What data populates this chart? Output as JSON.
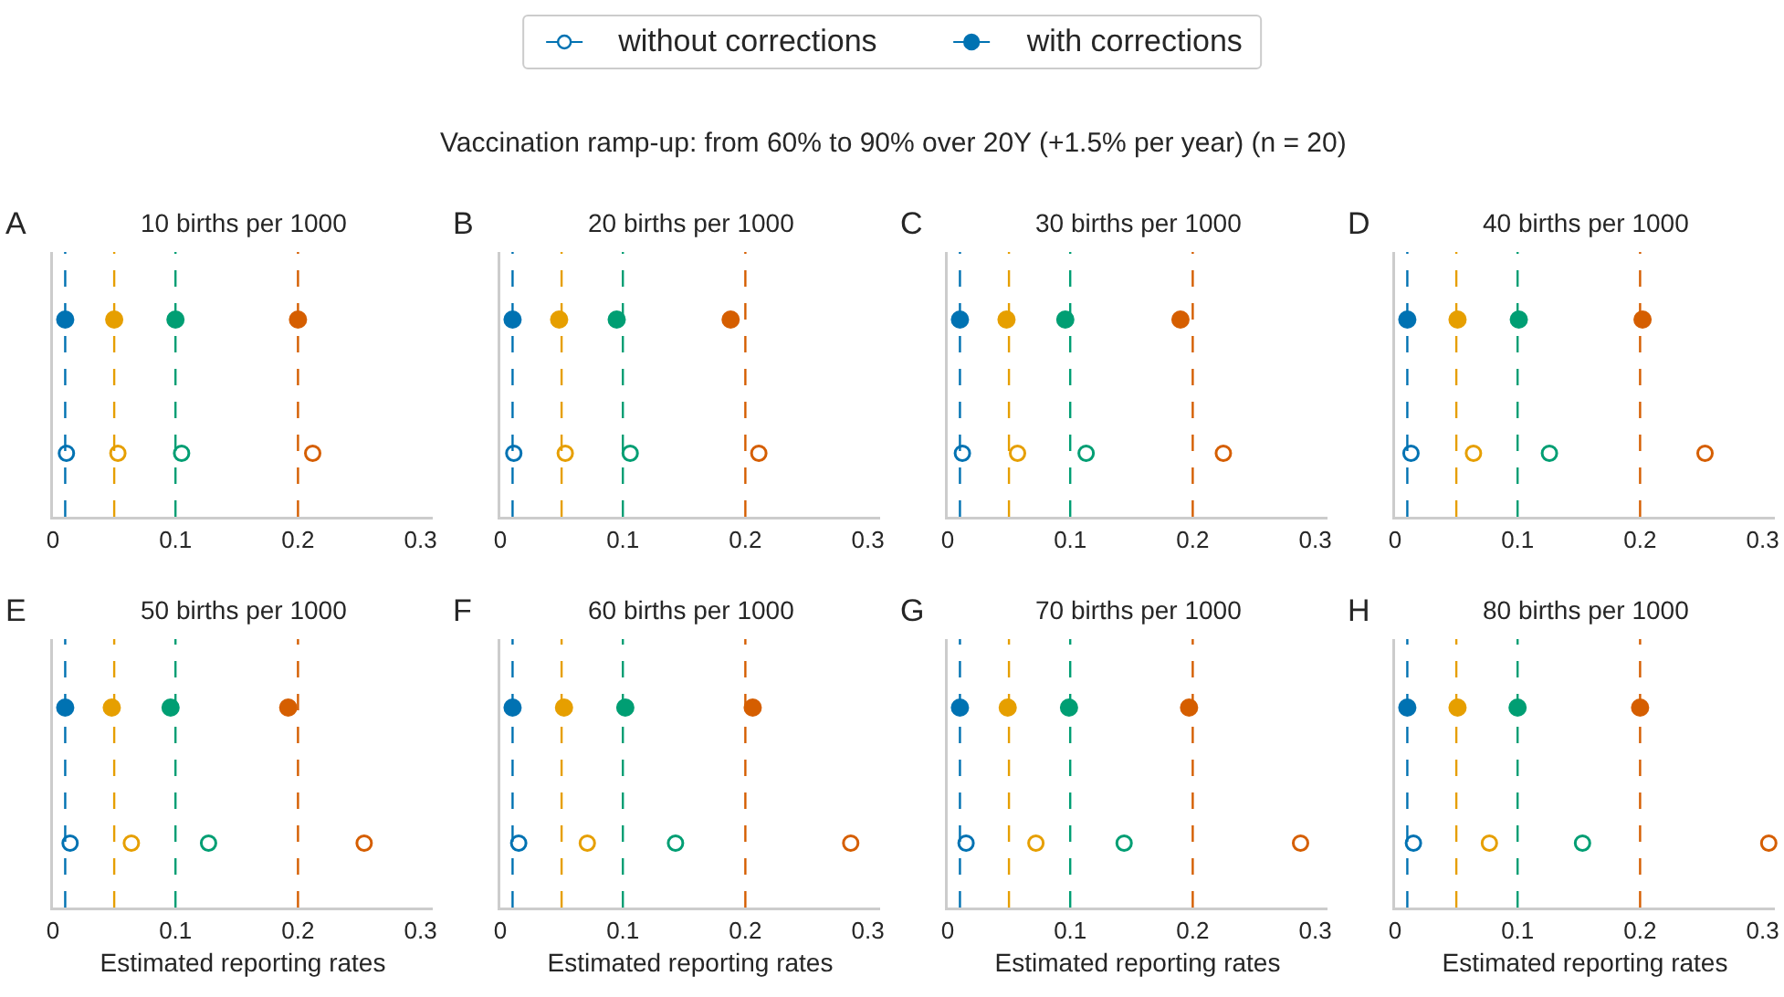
{
  "chart_data": [
    {
      "type": "scatter",
      "orientation": "horizontal",
      "title": "10 births per 1000",
      "annotations": [
        "A",
        "Vaccination ramp-up: from 60% to 90% over 20Y (+1.5% per year) (n = 20)"
      ],
      "categories": [
        null,
        null
      ],
      "xlim": [
        0,
        0.31
      ],
      "xticks": [
        0,
        0.1,
        0.2,
        0.3
      ],
      "tick_labels": "x",
      "legend": "top",
      "series": [
        {
          "name": "without corrections",
          "marker": "circle-open",
          "color": "#0072b2",
          "values": [
            null,
            0.011
          ]
        },
        {
          "name": "with corrections",
          "marker": "circle",
          "color": "#0072b2",
          "values": [
            0.01,
            null
          ]
        },
        {
          "marker": "circle-open",
          "color": "#e69f00",
          "values": [
            null,
            0.053
          ]
        },
        {
          "marker": "circle",
          "color": "#e69f00",
          "values": [
            0.05,
            null
          ]
        },
        {
          "marker": "circle-open",
          "color": "#009e73",
          "values": [
            null,
            0.105
          ]
        },
        {
          "marker": "circle",
          "color": "#009e73",
          "values": [
            0.1,
            null
          ]
        },
        {
          "marker": "circle-open",
          "color": "#d55e00",
          "values": [
            null,
            0.212
          ]
        },
        {
          "marker": "circle",
          "color": "#d55e00",
          "values": [
            0.2,
            null
          ]
        }
      ],
      "ref_lines": [
        {
          "axis": "x",
          "value": 0.01,
          "color": "#0072b2",
          "line_style": "dashed"
        },
        {
          "axis": "x",
          "value": 0.05,
          "color": "#e69f00",
          "line_style": "dashed"
        },
        {
          "axis": "x",
          "value": 0.1,
          "color": "#009e73",
          "line_style": "dashed"
        },
        {
          "axis": "x",
          "value": 0.2,
          "color": "#d55e00",
          "line_style": "dashed"
        }
      ]
    },
    {
      "type": "scatter",
      "orientation": "horizontal",
      "title": "20 births per 1000",
      "annotations": [
        "B"
      ],
      "categories": [
        null,
        null
      ],
      "xlim": [
        0,
        0.31
      ],
      "xticks": [
        0,
        0.1,
        0.2,
        0.3
      ],
      "tick_labels": "x",
      "series": [
        {
          "marker": "circle-open",
          "color": "#0072b2",
          "values": [
            null,
            0.011
          ]
        },
        {
          "marker": "circle",
          "color": "#0072b2",
          "values": [
            0.01,
            null
          ]
        },
        {
          "marker": "circle-open",
          "color": "#e69f00",
          "values": [
            null,
            0.053
          ]
        },
        {
          "marker": "circle",
          "color": "#e69f00",
          "values": [
            0.048,
            null
          ]
        },
        {
          "marker": "circle-open",
          "color": "#009e73",
          "values": [
            null,
            0.106
          ]
        },
        {
          "marker": "circle",
          "color": "#009e73",
          "values": [
            0.095,
            null
          ]
        },
        {
          "marker": "circle-open",
          "color": "#d55e00",
          "values": [
            null,
            0.211
          ]
        },
        {
          "marker": "circle",
          "color": "#d55e00",
          "values": [
            0.188,
            null
          ]
        }
      ],
      "ref_lines": [
        {
          "axis": "x",
          "value": 0.01,
          "color": "#0072b2",
          "line_style": "dashed"
        },
        {
          "axis": "x",
          "value": 0.05,
          "color": "#e69f00",
          "line_style": "dashed"
        },
        {
          "axis": "x",
          "value": 0.1,
          "color": "#009e73",
          "line_style": "dashed"
        },
        {
          "axis": "x",
          "value": 0.2,
          "color": "#d55e00",
          "line_style": "dashed"
        }
      ]
    },
    {
      "type": "scatter",
      "orientation": "horizontal",
      "title": "30 births per 1000",
      "annotations": [
        "C"
      ],
      "categories": [
        null,
        null
      ],
      "xlim": [
        0,
        0.31
      ],
      "xticks": [
        0,
        0.1,
        0.2,
        0.3
      ],
      "tick_labels": "x",
      "series": [
        {
          "marker": "circle-open",
          "color": "#0072b2",
          "values": [
            null,
            0.012
          ]
        },
        {
          "marker": "circle",
          "color": "#0072b2",
          "values": [
            0.01,
            null
          ]
        },
        {
          "marker": "circle-open",
          "color": "#e69f00",
          "values": [
            null,
            0.057
          ]
        },
        {
          "marker": "circle",
          "color": "#e69f00",
          "values": [
            0.048,
            null
          ]
        },
        {
          "marker": "circle-open",
          "color": "#009e73",
          "values": [
            null,
            0.113
          ]
        },
        {
          "marker": "circle",
          "color": "#009e73",
          "values": [
            0.096,
            null
          ]
        },
        {
          "marker": "circle-open",
          "color": "#d55e00",
          "values": [
            null,
            0.225
          ]
        },
        {
          "marker": "circle",
          "color": "#d55e00",
          "values": [
            0.19,
            null
          ]
        }
      ],
      "ref_lines": [
        {
          "axis": "x",
          "value": 0.01,
          "color": "#0072b2",
          "line_style": "dashed"
        },
        {
          "axis": "x",
          "value": 0.05,
          "color": "#e69f00",
          "line_style": "dashed"
        },
        {
          "axis": "x",
          "value": 0.1,
          "color": "#009e73",
          "line_style": "dashed"
        },
        {
          "axis": "x",
          "value": 0.2,
          "color": "#d55e00",
          "line_style": "dashed"
        }
      ]
    },
    {
      "type": "scatter",
      "orientation": "horizontal",
      "title": "40 births per 1000",
      "annotations": [
        "D"
      ],
      "categories": [
        null,
        null
      ],
      "xlim": [
        0,
        0.31
      ],
      "xticks": [
        0,
        0.1,
        0.2,
        0.3
      ],
      "tick_labels": "x",
      "series": [
        {
          "marker": "circle-open",
          "color": "#0072b2",
          "values": [
            null,
            0.013
          ]
        },
        {
          "marker": "circle",
          "color": "#0072b2",
          "values": [
            0.01,
            null
          ]
        },
        {
          "marker": "circle-open",
          "color": "#e69f00",
          "values": [
            null,
            0.064
          ]
        },
        {
          "marker": "circle",
          "color": "#e69f00",
          "values": [
            0.051,
            null
          ]
        },
        {
          "marker": "circle-open",
          "color": "#009e73",
          "values": [
            null,
            0.126
          ]
        },
        {
          "marker": "circle",
          "color": "#009e73",
          "values": [
            0.101,
            null
          ]
        },
        {
          "marker": "circle-open",
          "color": "#d55e00",
          "values": [
            null,
            0.253
          ]
        },
        {
          "marker": "circle",
          "color": "#d55e00",
          "values": [
            0.202,
            null
          ]
        }
      ],
      "ref_lines": [
        {
          "axis": "x",
          "value": 0.01,
          "color": "#0072b2",
          "line_style": "dashed"
        },
        {
          "axis": "x",
          "value": 0.05,
          "color": "#e69f00",
          "line_style": "dashed"
        },
        {
          "axis": "x",
          "value": 0.1,
          "color": "#009e73",
          "line_style": "dashed"
        },
        {
          "axis": "x",
          "value": 0.2,
          "color": "#d55e00",
          "line_style": "dashed"
        }
      ]
    },
    {
      "type": "scatter",
      "orientation": "horizontal",
      "title": "50 births per 1000",
      "xlabel": "Estimated reporting rates",
      "annotations": [
        "E"
      ],
      "categories": [
        null,
        null
      ],
      "xlim": [
        0,
        0.31
      ],
      "xticks": [
        0,
        0.1,
        0.2,
        0.3
      ],
      "tick_labels": "x",
      "series": [
        {
          "marker": "circle-open",
          "color": "#0072b2",
          "values": [
            null,
            0.014
          ]
        },
        {
          "marker": "circle",
          "color": "#0072b2",
          "values": [
            0.01,
            null
          ]
        },
        {
          "marker": "circle-open",
          "color": "#e69f00",
          "values": [
            null,
            0.064
          ]
        },
        {
          "marker": "circle",
          "color": "#e69f00",
          "values": [
            0.048,
            null
          ]
        },
        {
          "marker": "circle-open",
          "color": "#009e73",
          "values": [
            null,
            0.127
          ]
        },
        {
          "marker": "circle",
          "color": "#009e73",
          "values": [
            0.096,
            null
          ]
        },
        {
          "marker": "circle-open",
          "color": "#d55e00",
          "values": [
            null,
            0.254
          ]
        },
        {
          "marker": "circle",
          "color": "#d55e00",
          "values": [
            0.192,
            null
          ]
        }
      ],
      "ref_lines": [
        {
          "axis": "x",
          "value": 0.01,
          "color": "#0072b2",
          "line_style": "dashed"
        },
        {
          "axis": "x",
          "value": 0.05,
          "color": "#e69f00",
          "line_style": "dashed"
        },
        {
          "axis": "x",
          "value": 0.1,
          "color": "#009e73",
          "line_style": "dashed"
        },
        {
          "axis": "x",
          "value": 0.2,
          "color": "#d55e00",
          "line_style": "dashed"
        }
      ]
    },
    {
      "type": "scatter",
      "orientation": "horizontal",
      "title": "60 births per 1000",
      "xlabel": "Estimated reporting rates",
      "annotations": [
        "F"
      ],
      "categories": [
        null,
        null
      ],
      "xlim": [
        0,
        0.31
      ],
      "xticks": [
        0,
        0.1,
        0.2,
        0.3
      ],
      "tick_labels": "x",
      "series": [
        {
          "marker": "circle-open",
          "color": "#0072b2",
          "values": [
            null,
            0.015
          ]
        },
        {
          "marker": "circle",
          "color": "#0072b2",
          "values": [
            0.01,
            null
          ]
        },
        {
          "marker": "circle-open",
          "color": "#e69f00",
          "values": [
            null,
            0.071
          ]
        },
        {
          "marker": "circle",
          "color": "#e69f00",
          "values": [
            0.052,
            null
          ]
        },
        {
          "marker": "circle-open",
          "color": "#009e73",
          "values": [
            null,
            0.143
          ]
        },
        {
          "marker": "circle",
          "color": "#009e73",
          "values": [
            0.102,
            null
          ]
        },
        {
          "marker": "circle-open",
          "color": "#d55e00",
          "values": [
            null,
            0.286
          ]
        },
        {
          "marker": "circle",
          "color": "#d55e00",
          "values": [
            0.206,
            null
          ]
        }
      ],
      "ref_lines": [
        {
          "axis": "x",
          "value": 0.01,
          "color": "#0072b2",
          "line_style": "dashed"
        },
        {
          "axis": "x",
          "value": 0.05,
          "color": "#e69f00",
          "line_style": "dashed"
        },
        {
          "axis": "x",
          "value": 0.1,
          "color": "#009e73",
          "line_style": "dashed"
        },
        {
          "axis": "x",
          "value": 0.2,
          "color": "#d55e00",
          "line_style": "dashed"
        }
      ]
    },
    {
      "type": "scatter",
      "orientation": "horizontal",
      "title": "70 births per 1000",
      "xlabel": "Estimated reporting rates",
      "annotations": [
        "G"
      ],
      "categories": [
        null,
        null
      ],
      "xlim": [
        0,
        0.31
      ],
      "xticks": [
        0,
        0.1,
        0.2,
        0.3
      ],
      "tick_labels": "x",
      "series": [
        {
          "marker": "circle-open",
          "color": "#0072b2",
          "values": [
            null,
            0.015
          ]
        },
        {
          "marker": "circle",
          "color": "#0072b2",
          "values": [
            0.01,
            null
          ]
        },
        {
          "marker": "circle-open",
          "color": "#e69f00",
          "values": [
            null,
            0.072
          ]
        },
        {
          "marker": "circle",
          "color": "#e69f00",
          "values": [
            0.049,
            null
          ]
        },
        {
          "marker": "circle-open",
          "color": "#009e73",
          "values": [
            null,
            0.144
          ]
        },
        {
          "marker": "circle",
          "color": "#009e73",
          "values": [
            0.099,
            null
          ]
        },
        {
          "marker": "circle-open",
          "color": "#d55e00",
          "values": [
            null,
            0.288
          ]
        },
        {
          "marker": "circle",
          "color": "#d55e00",
          "values": [
            0.197,
            null
          ]
        }
      ],
      "ref_lines": [
        {
          "axis": "x",
          "value": 0.01,
          "color": "#0072b2",
          "line_style": "dashed"
        },
        {
          "axis": "x",
          "value": 0.05,
          "color": "#e69f00",
          "line_style": "dashed"
        },
        {
          "axis": "x",
          "value": 0.1,
          "color": "#009e73",
          "line_style": "dashed"
        },
        {
          "axis": "x",
          "value": 0.2,
          "color": "#d55e00",
          "line_style": "dashed"
        }
      ]
    },
    {
      "type": "scatter",
      "orientation": "horizontal",
      "title": "80 births per 1000",
      "xlabel": "Estimated reporting rates",
      "annotations": [
        "H"
      ],
      "categories": [
        null,
        null
      ],
      "xlim": [
        0,
        0.31
      ],
      "xticks": [
        0,
        0.1,
        0.2,
        0.3
      ],
      "tick_labels": "x",
      "series": [
        {
          "marker": "circle-open",
          "color": "#0072b2",
          "values": [
            null,
            0.015
          ]
        },
        {
          "marker": "circle",
          "color": "#0072b2",
          "values": [
            0.01,
            null
          ]
        },
        {
          "marker": "circle-open",
          "color": "#e69f00",
          "values": [
            null,
            0.077
          ]
        },
        {
          "marker": "circle",
          "color": "#e69f00",
          "values": [
            0.051,
            null
          ]
        },
        {
          "marker": "circle-open",
          "color": "#009e73",
          "values": [
            null,
            0.153
          ]
        },
        {
          "marker": "circle",
          "color": "#009e73",
          "values": [
            0.1,
            null
          ]
        },
        {
          "marker": "circle-open",
          "color": "#d55e00",
          "values": [
            null,
            0.305
          ]
        },
        {
          "marker": "circle",
          "color": "#d55e00",
          "values": [
            0.2,
            null
          ]
        }
      ],
      "ref_lines": [
        {
          "axis": "x",
          "value": 0.01,
          "color": "#0072b2",
          "line_style": "dashed"
        },
        {
          "axis": "x",
          "value": 0.05,
          "color": "#e69f00",
          "line_style": "dashed"
        },
        {
          "axis": "x",
          "value": 0.1,
          "color": "#009e73",
          "line_style": "dashed"
        },
        {
          "axis": "x",
          "value": 0.2,
          "color": "#d55e00",
          "line_style": "dashed"
        }
      ]
    }
  ]
}
